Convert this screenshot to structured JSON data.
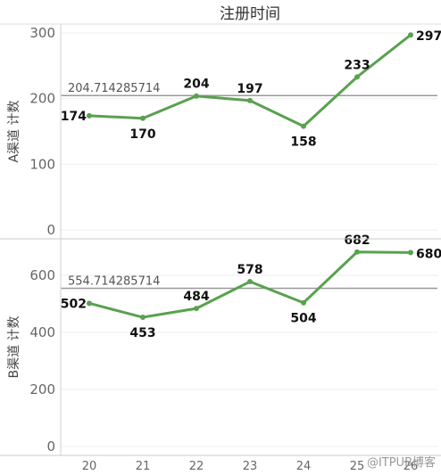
{
  "chart_data": {
    "type": "line",
    "title": "注册时间",
    "categories": [
      "20",
      "21",
      "22",
      "23",
      "24",
      "25",
      "26"
    ],
    "panels": [
      {
        "ylabel": "A渠道 计数",
        "values": [
          174,
          170,
          204,
          197,
          158,
          233,
          297
        ],
        "value_labels": [
          "174",
          "170",
          "204",
          "197",
          "158",
          "233",
          "297"
        ],
        "reference_line": 204.714285714,
        "reference_label": "204.714285714",
        "ylim": [
          0,
          315
        ],
        "yticks": [
          0,
          100,
          200,
          300
        ]
      },
      {
        "ylabel": "B渠道 计数",
        "values": [
          502,
          453,
          484,
          578,
          504,
          682,
          680
        ],
        "value_labels": [
          "502",
          "453",
          "484",
          "578",
          "504",
          "682",
          "680"
        ],
        "reference_line": 554.714285714,
        "reference_label": "554.714285714",
        "ylim": [
          0,
          720
        ],
        "yticks": [
          0,
          200,
          400,
          600
        ]
      }
    ],
    "line_color": "#59a14f",
    "grid": true,
    "legend": "none"
  },
  "watermark": "@ITPUB博客"
}
